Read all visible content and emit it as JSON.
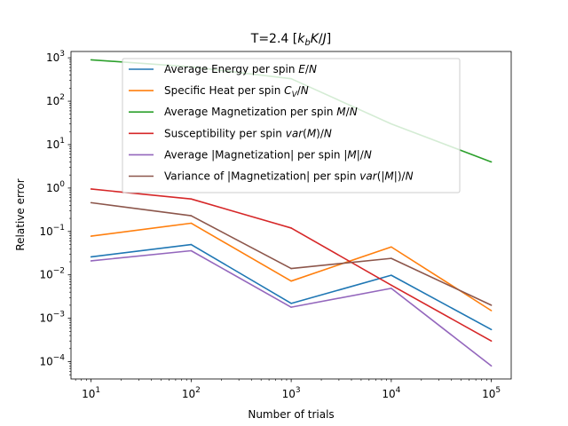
{
  "chart_data": {
    "type": "line",
    "title": "T=2.4 [k_bK/J]",
    "xlabel": "Number of trials",
    "ylabel": "Relative error",
    "x_scale": "log",
    "y_scale": "log",
    "x": [
      10,
      100,
      1000,
      10000,
      100000
    ],
    "xlim": [
      6.3,
      158000
    ],
    "ylim": [
      4e-05,
      1400
    ],
    "x_ticks": [
      {
        "value": 10,
        "base": "10",
        "exp": "1"
      },
      {
        "value": 100,
        "base": "10",
        "exp": "2"
      },
      {
        "value": 1000,
        "base": "10",
        "exp": "3"
      },
      {
        "value": 10000,
        "base": "10",
        "exp": "4"
      },
      {
        "value": 100000,
        "base": "10",
        "exp": "5"
      }
    ],
    "y_ticks": [
      {
        "value": 0.0001,
        "base": "10",
        "exp": "−4"
      },
      {
        "value": 0.001,
        "base": "10",
        "exp": "−3"
      },
      {
        "value": 0.01,
        "base": "10",
        "exp": "−2"
      },
      {
        "value": 0.1,
        "base": "10",
        "exp": "−1"
      },
      {
        "value": 1,
        "base": "10",
        "exp": "0"
      },
      {
        "value": 10,
        "base": "10",
        "exp": "1"
      },
      {
        "value": 100,
        "base": "10",
        "exp": "2"
      },
      {
        "value": 1000,
        "base": "10",
        "exp": "3"
      }
    ],
    "grid": false,
    "legend_position": "upper-center",
    "series": [
      {
        "name": "Average Energy per spin E/N",
        "color": "#1f77b4",
        "values": [
          0.026,
          0.05,
          0.0022,
          0.0098,
          0.00055
        ]
      },
      {
        "name": "Specific Heat per spin C_V/N",
        "color": "#ff7f0e",
        "values": [
          0.078,
          0.155,
          0.0072,
          0.044,
          0.0015
        ]
      },
      {
        "name": "Average Magnetization per spin M/N",
        "color": "#2ca02c",
        "values": [
          900,
          620,
          330,
          30,
          4
        ]
      },
      {
        "name": "Susceptibility per spin var(M)/N",
        "color": "#d62728",
        "values": [
          0.95,
          0.56,
          0.12,
          0.0058,
          0.0003
        ]
      },
      {
        "name": "Average |Magnetization| per spin |M|/N",
        "color": "#9467bd",
        "values": [
          0.021,
          0.036,
          0.0018,
          0.0049,
          8e-05
        ]
      },
      {
        "name": "Variance of |Magnetization| per spin var(|M|)/N",
        "color": "#8c564b",
        "values": [
          0.46,
          0.23,
          0.014,
          0.024,
          0.002
        ]
      }
    ]
  }
}
